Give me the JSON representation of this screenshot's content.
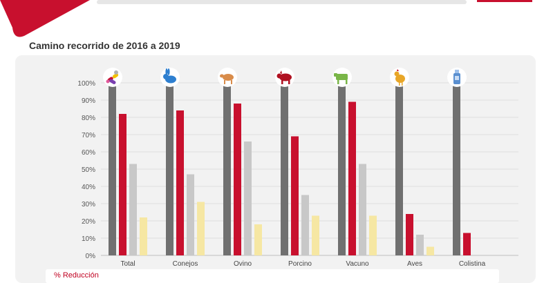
{
  "header": {
    "title": "Camino recorrido de 2016 a 2019",
    "accent_color": "#c8102e"
  },
  "footer": {
    "label": "% Reducción"
  },
  "chart_data": {
    "type": "bar",
    "title": "Camino recorrido de 2016 a 2019",
    "xlabel": "",
    "ylabel": "",
    "ylim": [
      0,
      100
    ],
    "yticks": [
      "0%",
      "10%",
      "20%",
      "30%",
      "40%",
      "50%",
      "60%",
      "70%",
      "80%",
      "90%",
      "100%"
    ],
    "grid": true,
    "categories": [
      "Total",
      "Conejos",
      "Ovino",
      "Porcino",
      "Vacuno",
      "Aves",
      "Colistina"
    ],
    "category_icons": [
      "pills-icon",
      "rabbit-icon",
      "sheep-icon",
      "pig-icon",
      "cow-icon",
      "chicken-icon",
      "bottle-icon"
    ],
    "series": [
      {
        "color": "#707070",
        "values": [
          100,
          100,
          100,
          100,
          100,
          100,
          100
        ]
      },
      {
        "color": "#c8102e",
        "values": [
          82,
          84,
          88,
          69,
          89,
          24,
          13
        ]
      },
      {
        "color": "#c8c8c8",
        "values": [
          53,
          47,
          66,
          35,
          53,
          12,
          null
        ]
      },
      {
        "color": "#f6e7a3",
        "values": [
          22,
          31,
          18,
          23,
          23,
          5,
          null
        ]
      }
    ]
  }
}
